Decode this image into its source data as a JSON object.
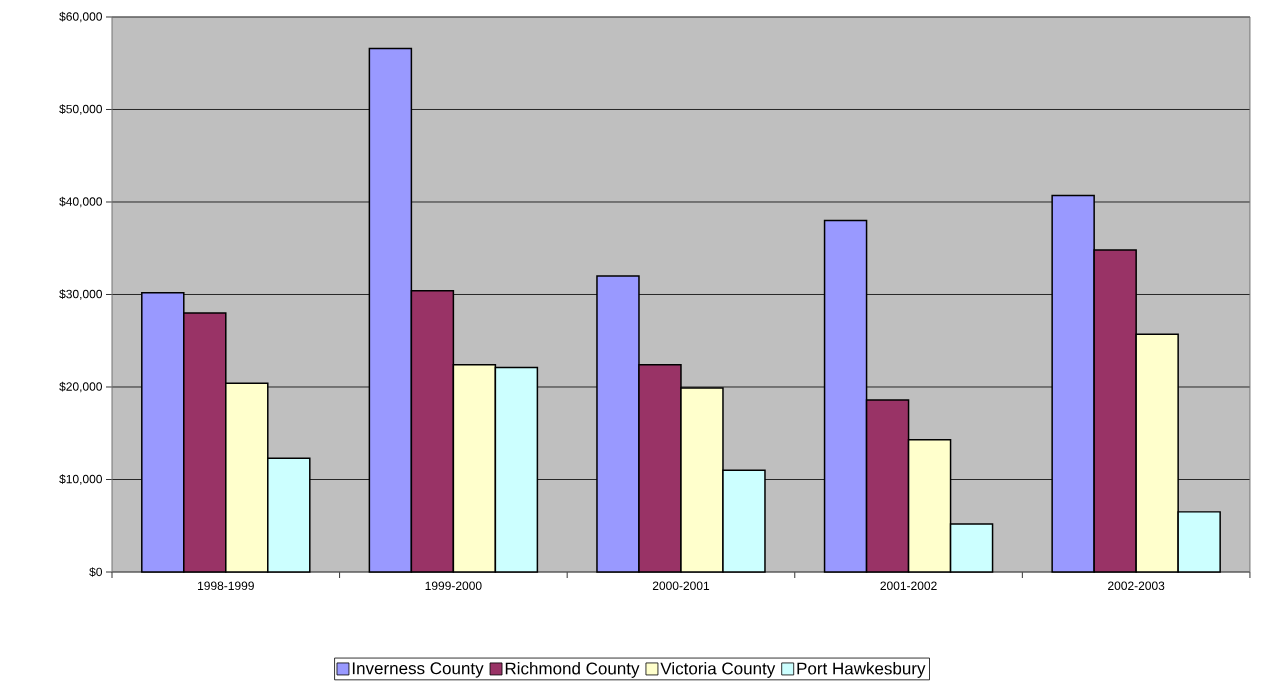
{
  "chart_data": {
    "type": "bar",
    "categories": [
      "1998-1999",
      "1999-2000",
      "2000-2001",
      "2001-2002",
      "2002-2003"
    ],
    "series": [
      {
        "name": "Inverness County",
        "color": "#9999ff",
        "values": [
          30200,
          56600,
          32000,
          38000,
          40700
        ]
      },
      {
        "name": "Richmond County",
        "color": "#993366",
        "values": [
          28000,
          30400,
          22400,
          18600,
          34800
        ]
      },
      {
        "name": "Victoria County",
        "color": "#ffffcc",
        "values": [
          20400,
          22400,
          19900,
          14300,
          25700
        ]
      },
      {
        "name": "Port Hawkesbury",
        "color": "#ccffff",
        "values": [
          12300,
          22100,
          11000,
          5200,
          6500
        ]
      }
    ],
    "ylim": [
      0,
      60000
    ],
    "yticks": [
      {
        "value": 0,
        "label": "$0"
      },
      {
        "value": 10000,
        "label": "$10,000"
      },
      {
        "value": 20000,
        "label": "$20,000"
      },
      {
        "value": 30000,
        "label": "$30,000"
      },
      {
        "value": 40000,
        "label": "$40,000"
      },
      {
        "value": 50000,
        "label": "$50,000"
      },
      {
        "value": 60000,
        "label": "$60,000"
      }
    ],
    "grid": "y",
    "legend": "bottom"
  }
}
